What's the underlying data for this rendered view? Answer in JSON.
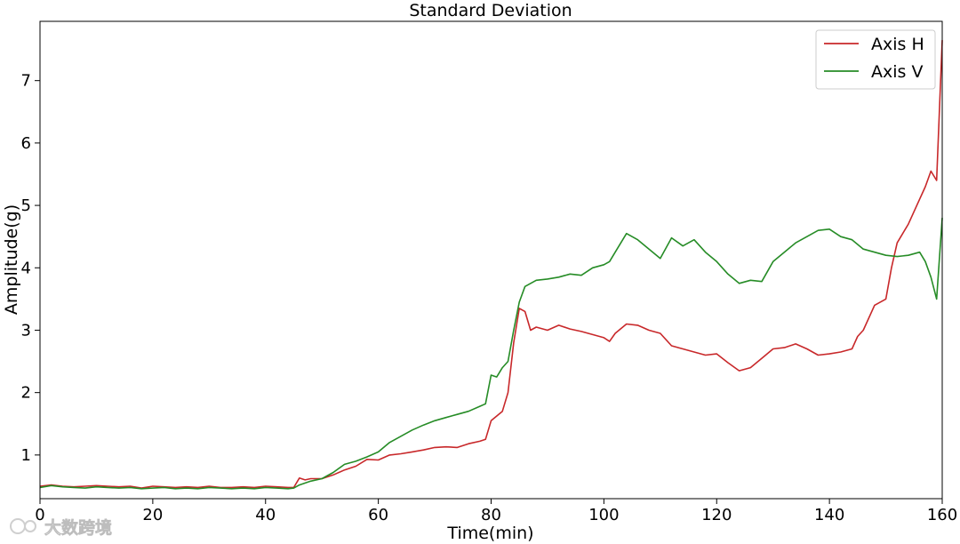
{
  "chart_data": {
    "type": "line",
    "title": "Standard Deviation",
    "xlabel": "Time(min)",
    "ylabel": "Amplitude(g)",
    "xlim": [
      0,
      160
    ],
    "ylim": [
      0.3,
      7.95
    ],
    "xticks": [
      0,
      20,
      40,
      60,
      80,
      100,
      120,
      140,
      160
    ],
    "yticks": [
      1,
      2,
      3,
      4,
      5,
      6,
      7
    ],
    "grid": false,
    "legend_position": "top-right",
    "series": [
      {
        "name": "Axis H",
        "color": "#c8282a",
        "points": [
          [
            0,
            0.5
          ],
          [
            2,
            0.52
          ],
          [
            4,
            0.5
          ],
          [
            6,
            0.49
          ],
          [
            8,
            0.5
          ],
          [
            10,
            0.51
          ],
          [
            12,
            0.5
          ],
          [
            14,
            0.49
          ],
          [
            16,
            0.5
          ],
          [
            18,
            0.47
          ],
          [
            20,
            0.5
          ],
          [
            22,
            0.49
          ],
          [
            24,
            0.48
          ],
          [
            26,
            0.49
          ],
          [
            28,
            0.48
          ],
          [
            30,
            0.5
          ],
          [
            32,
            0.48
          ],
          [
            34,
            0.48
          ],
          [
            36,
            0.49
          ],
          [
            38,
            0.48
          ],
          [
            40,
            0.5
          ],
          [
            42,
            0.49
          ],
          [
            44,
            0.48
          ],
          [
            45,
            0.48
          ],
          [
            46,
            0.63
          ],
          [
            47,
            0.6
          ],
          [
            48,
            0.62
          ],
          [
            50,
            0.62
          ],
          [
            52,
            0.68
          ],
          [
            54,
            0.76
          ],
          [
            56,
            0.82
          ],
          [
            58,
            0.93
          ],
          [
            60,
            0.92
          ],
          [
            62,
            1.0
          ],
          [
            64,
            1.02
          ],
          [
            66,
            1.05
          ],
          [
            68,
            1.08
          ],
          [
            70,
            1.12
          ],
          [
            72,
            1.13
          ],
          [
            74,
            1.12
          ],
          [
            76,
            1.18
          ],
          [
            78,
            1.22
          ],
          [
            79,
            1.25
          ],
          [
            80,
            1.55
          ],
          [
            82,
            1.7
          ],
          [
            83,
            2.0
          ],
          [
            84,
            2.8
          ],
          [
            85,
            3.35
          ],
          [
            86,
            3.3
          ],
          [
            87,
            3.0
          ],
          [
            88,
            3.05
          ],
          [
            90,
            3.0
          ],
          [
            92,
            3.08
          ],
          [
            94,
            3.02
          ],
          [
            96,
            2.98
          ],
          [
            98,
            2.93
          ],
          [
            100,
            2.88
          ],
          [
            101,
            2.82
          ],
          [
            102,
            2.95
          ],
          [
            104,
            3.1
          ],
          [
            106,
            3.08
          ],
          [
            108,
            3.0
          ],
          [
            110,
            2.95
          ],
          [
            112,
            2.75
          ],
          [
            114,
            2.7
          ],
          [
            116,
            2.65
          ],
          [
            118,
            2.6
          ],
          [
            120,
            2.62
          ],
          [
            122,
            2.48
          ],
          [
            124,
            2.35
          ],
          [
            126,
            2.4
          ],
          [
            128,
            2.55
          ],
          [
            130,
            2.7
          ],
          [
            132,
            2.72
          ],
          [
            134,
            2.78
          ],
          [
            136,
            2.7
          ],
          [
            138,
            2.6
          ],
          [
            140,
            2.62
          ],
          [
            142,
            2.65
          ],
          [
            144,
            2.7
          ],
          [
            145,
            2.9
          ],
          [
            146,
            3.0
          ],
          [
            148,
            3.4
          ],
          [
            150,
            3.5
          ],
          [
            151,
            4.0
          ],
          [
            152,
            4.4
          ],
          [
            154,
            4.7
          ],
          [
            156,
            5.1
          ],
          [
            157,
            5.3
          ],
          [
            158,
            5.55
          ],
          [
            159,
            5.4
          ],
          [
            160,
            7.65
          ]
        ]
      },
      {
        "name": "Axis V",
        "color": "#268c26",
        "points": [
          [
            0,
            0.48
          ],
          [
            2,
            0.51
          ],
          [
            4,
            0.49
          ],
          [
            6,
            0.48
          ],
          [
            8,
            0.47
          ],
          [
            10,
            0.49
          ],
          [
            12,
            0.48
          ],
          [
            14,
            0.47
          ],
          [
            16,
            0.48
          ],
          [
            18,
            0.46
          ],
          [
            20,
            0.47
          ],
          [
            22,
            0.48
          ],
          [
            24,
            0.46
          ],
          [
            26,
            0.47
          ],
          [
            28,
            0.46
          ],
          [
            30,
            0.48
          ],
          [
            32,
            0.47
          ],
          [
            34,
            0.46
          ],
          [
            36,
            0.47
          ],
          [
            38,
            0.46
          ],
          [
            40,
            0.48
          ],
          [
            42,
            0.47
          ],
          [
            44,
            0.46
          ],
          [
            45,
            0.47
          ],
          [
            46,
            0.52
          ],
          [
            48,
            0.58
          ],
          [
            50,
            0.62
          ],
          [
            52,
            0.72
          ],
          [
            54,
            0.85
          ],
          [
            56,
            0.9
          ],
          [
            58,
            0.97
          ],
          [
            60,
            1.05
          ],
          [
            62,
            1.2
          ],
          [
            64,
            1.3
          ],
          [
            66,
            1.4
          ],
          [
            68,
            1.48
          ],
          [
            70,
            1.55
          ],
          [
            72,
            1.6
          ],
          [
            74,
            1.65
          ],
          [
            76,
            1.7
          ],
          [
            78,
            1.78
          ],
          [
            79,
            1.82
          ],
          [
            80,
            2.28
          ],
          [
            81,
            2.25
          ],
          [
            82,
            2.4
          ],
          [
            83,
            2.5
          ],
          [
            84,
            3.0
          ],
          [
            85,
            3.45
          ],
          [
            86,
            3.7
          ],
          [
            88,
            3.8
          ],
          [
            90,
            3.82
          ],
          [
            92,
            3.85
          ],
          [
            94,
            3.9
          ],
          [
            96,
            3.88
          ],
          [
            98,
            4.0
          ],
          [
            100,
            4.05
          ],
          [
            101,
            4.1
          ],
          [
            102,
            4.25
          ],
          [
            104,
            4.55
          ],
          [
            106,
            4.45
          ],
          [
            108,
            4.3
          ],
          [
            110,
            4.15
          ],
          [
            112,
            4.48
          ],
          [
            114,
            4.35
          ],
          [
            116,
            4.45
          ],
          [
            118,
            4.25
          ],
          [
            120,
            4.1
          ],
          [
            122,
            3.9
          ],
          [
            124,
            3.75
          ],
          [
            126,
            3.8
          ],
          [
            128,
            3.78
          ],
          [
            130,
            4.1
          ],
          [
            132,
            4.25
          ],
          [
            134,
            4.4
          ],
          [
            136,
            4.5
          ],
          [
            138,
            4.6
          ],
          [
            140,
            4.62
          ],
          [
            142,
            4.5
          ],
          [
            144,
            4.45
          ],
          [
            146,
            4.3
          ],
          [
            148,
            4.25
          ],
          [
            150,
            4.2
          ],
          [
            152,
            4.18
          ],
          [
            154,
            4.2
          ],
          [
            156,
            4.25
          ],
          [
            157,
            4.1
          ],
          [
            158,
            3.85
          ],
          [
            159,
            3.5
          ],
          [
            160,
            4.8
          ]
        ]
      }
    ],
    "watermark": "大数跨境"
  }
}
